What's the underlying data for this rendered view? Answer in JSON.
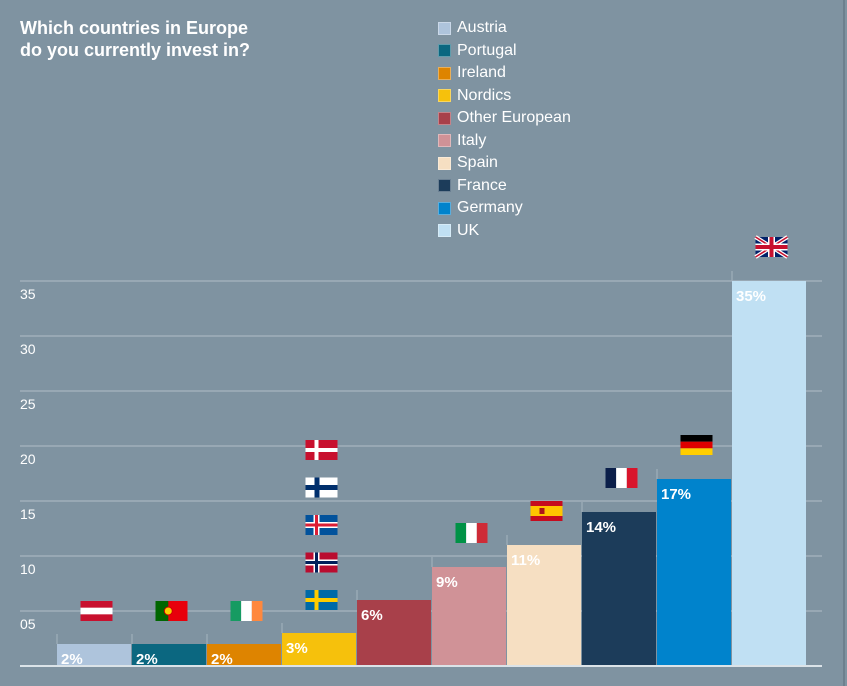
{
  "chart_data": {
    "type": "bar",
    "title": "Which countries in Europe do you currently invest in?",
    "title_lines": [
      "Which countries in Europe",
      "do you currently invest in?"
    ],
    "xlabel": "",
    "ylabel": "",
    "ylim": [
      0,
      35
    ],
    "grid": true,
    "legend_position": "top-center",
    "y_ticks": [
      5,
      10,
      15,
      20,
      25,
      30,
      35
    ],
    "y_tick_labels": [
      "05",
      "10",
      "15",
      "20",
      "25",
      "30",
      "35"
    ],
    "categories": [
      "Austria",
      "Portugal",
      "Ireland",
      "Nordics",
      "Other European",
      "Italy",
      "Spain",
      "France",
      "Germany",
      "UK"
    ],
    "values": [
      2,
      2,
      2,
      3,
      6,
      9,
      11,
      14,
      17,
      35
    ],
    "value_labels": [
      "2%",
      "2%",
      "2%",
      "3%",
      "6%",
      "9%",
      "11%",
      "14%",
      "17%",
      "35%"
    ],
    "colors": [
      "#aec4dc",
      "#0b6780",
      "#de8400",
      "#f6c10c",
      "#a8404a",
      "#d09297",
      "#f6dfc2",
      "#1c3c5a",
      "#0083cc",
      "#c0e0f3"
    ],
    "flags": [
      [
        "austria-flag"
      ],
      [
        "portugal-flag"
      ],
      [
        "ireland-flag"
      ],
      [
        "sweden-flag",
        "norway-flag",
        "iceland-flag",
        "finland-flag",
        "denmark-flag"
      ],
      [],
      [
        "italy-flag"
      ],
      [
        "spain-flag"
      ],
      [
        "france-flag"
      ],
      [
        "germany-flag"
      ],
      [
        "uk-flag"
      ]
    ]
  }
}
